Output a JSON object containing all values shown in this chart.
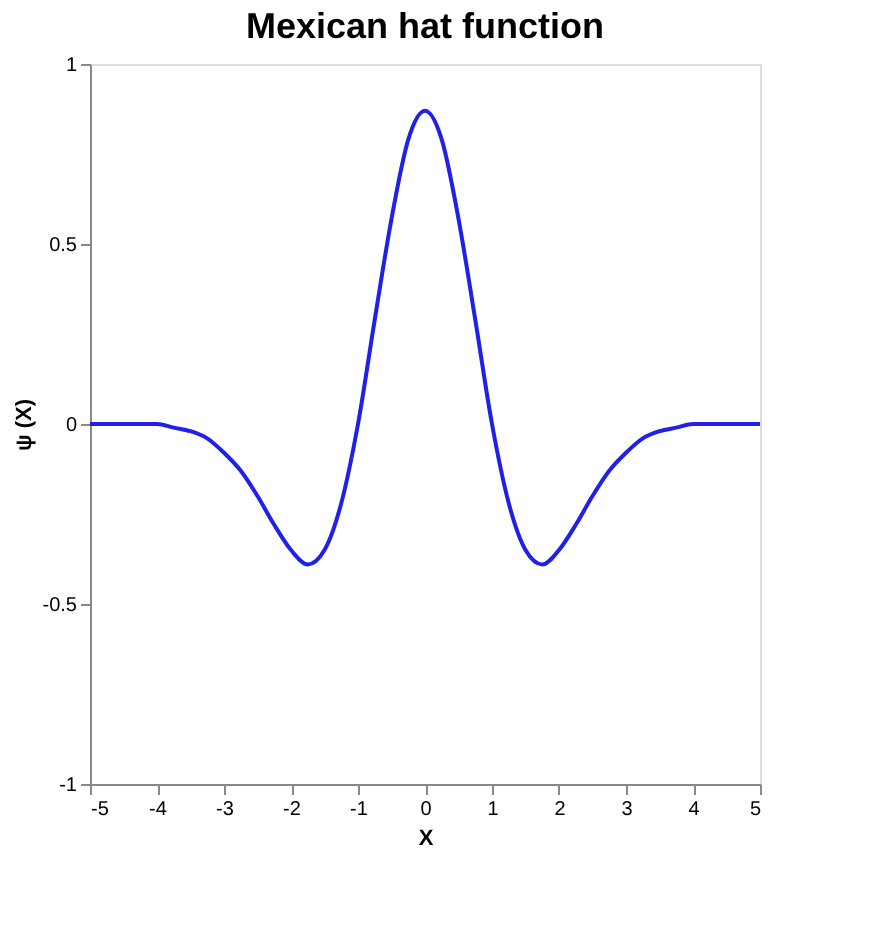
{
  "chart_data": {
    "type": "line",
    "title": "Mexican hat function",
    "xlabel": "X",
    "ylabel": "ψ (X)",
    "x": [
      -5,
      -4.5,
      -4,
      -3.75,
      -3.5,
      -3.25,
      -3,
      -2.75,
      -2.5,
      -2.25,
      -2,
      -1.75,
      -1.5,
      -1.25,
      -1,
      -0.75,
      -0.5,
      -0.25,
      0,
      0.25,
      0.5,
      0.75,
      1,
      1.25,
      1.5,
      1.75,
      2,
      2.25,
      2.5,
      2.75,
      3,
      3.25,
      3.5,
      3.75,
      4,
      4.5,
      5
    ],
    "series": [
      {
        "color": "#2020e8",
        "values": [
          0,
          0,
          0,
          -0.01,
          -0.02,
          -0.04,
          -0.08,
          -0.13,
          -0.2,
          -0.28,
          -0.35,
          -0.39,
          -0.35,
          -0.22,
          0,
          0.29,
          0.57,
          0.79,
          0.87,
          0.79,
          0.57,
          0.29,
          0,
          -0.22,
          -0.35,
          -0.39,
          -0.35,
          -0.28,
          -0.2,
          -0.13,
          -0.08,
          -0.04,
          -0.02,
          -0.01,
          0,
          0,
          0
        ]
      }
    ],
    "xlim": [
      -5,
      5
    ],
    "ylim": [
      -1,
      1
    ],
    "xticks": [
      -5,
      -4,
      -3,
      -2,
      -1,
      0,
      1,
      2,
      3,
      4,
      5
    ],
    "yticks": [
      -1,
      -0.5,
      0,
      0.5,
      1
    ],
    "grid": false,
    "line_style": "solid",
    "marker": "none"
  }
}
